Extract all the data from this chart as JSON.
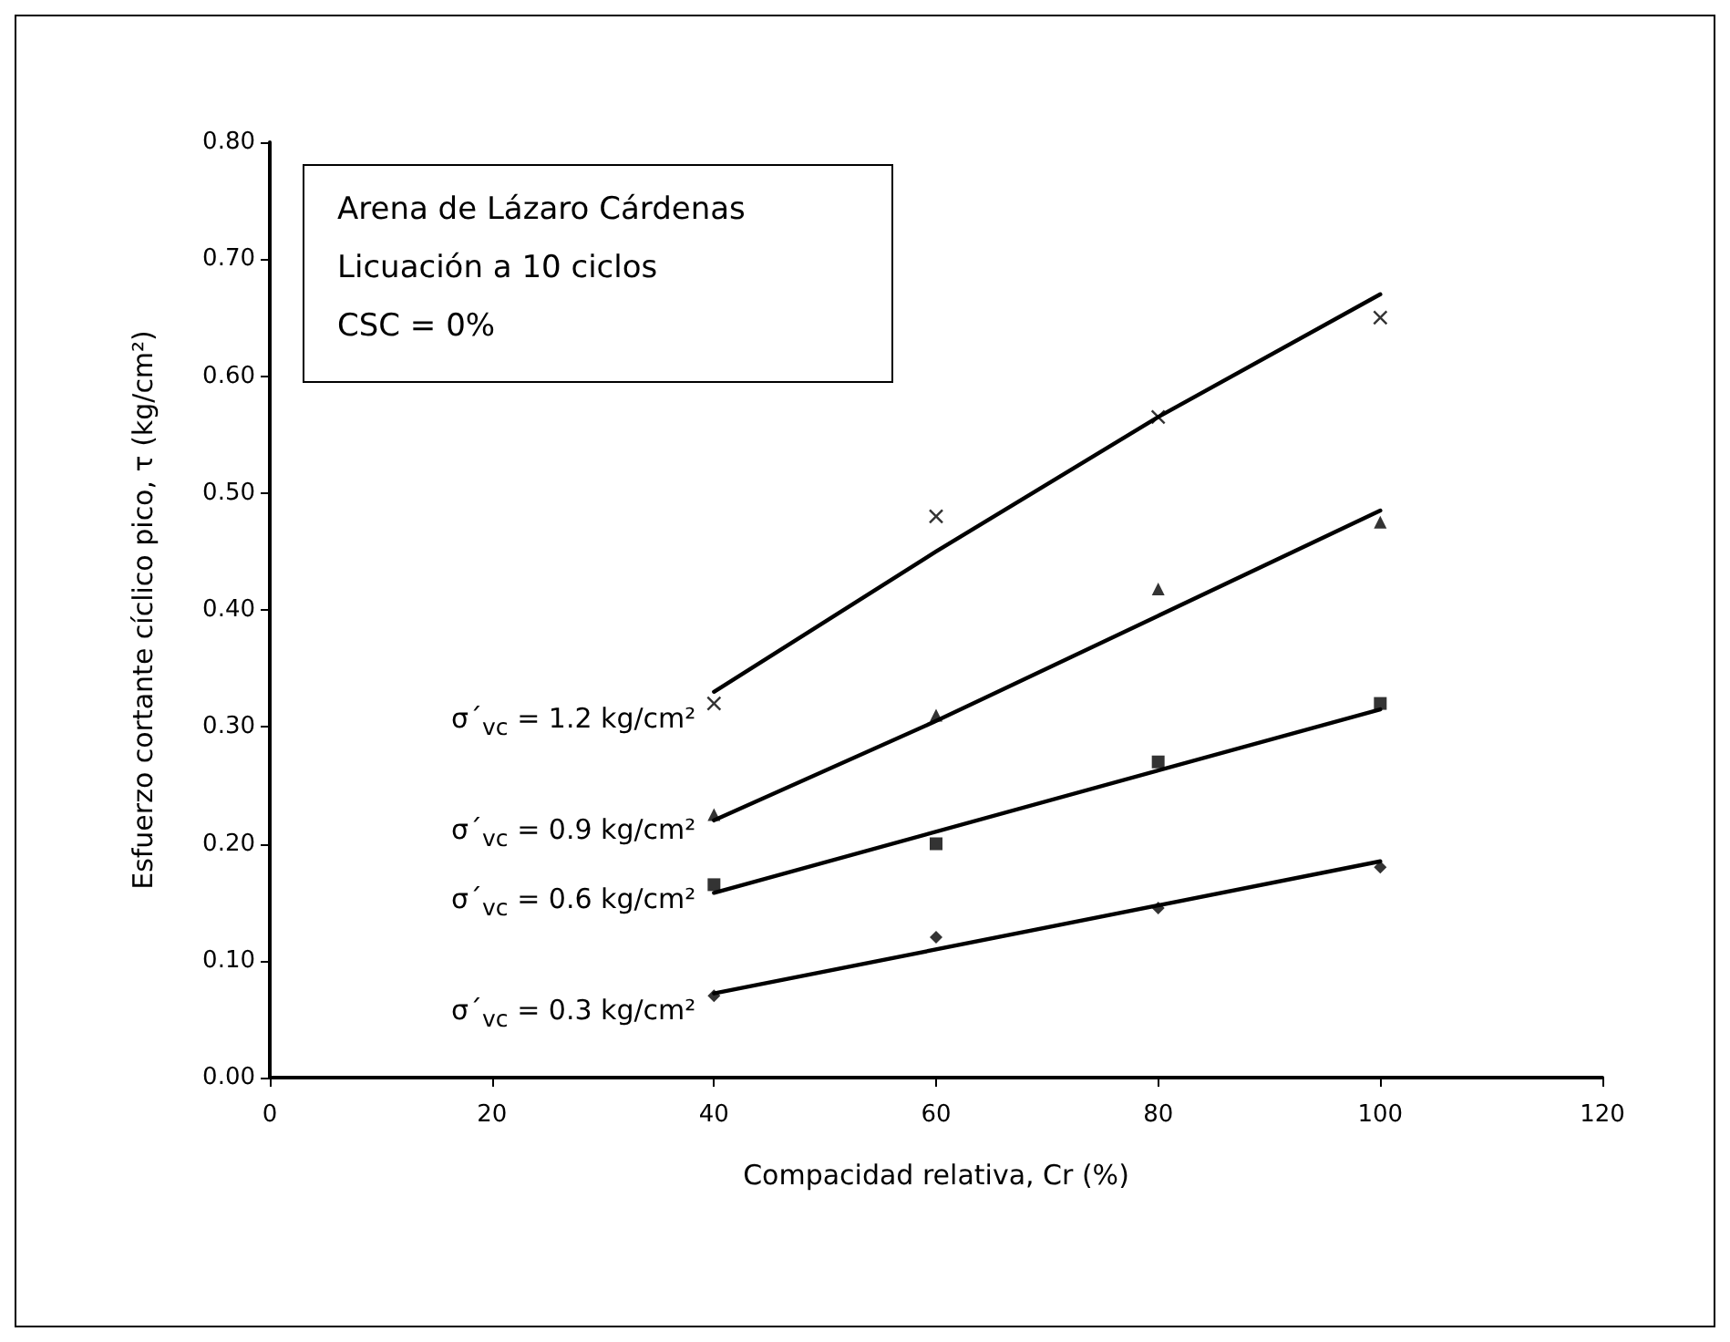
{
  "chart_data": {
    "type": "scatter",
    "xlabel": "Compacidad relativa, Cr (%)",
    "ylabel": "Esfuerzo cortante cíclico pico, τ (kg/cm²)",
    "annotations": [
      "Arena de Lázaro Cárdenas",
      "Licuación a 10 ciclos",
      "CSC = 0%"
    ],
    "xlim": [
      0,
      120
    ],
    "xticks": [
      0,
      20,
      40,
      60,
      80,
      100,
      120
    ],
    "ylim": [
      0,
      0.8
    ],
    "yticks": [
      {
        "value": 0,
        "label": "0.00"
      },
      {
        "value": 0.1,
        "label": "0.10"
      },
      {
        "value": 0.2,
        "label": "0.20"
      },
      {
        "value": 0.3,
        "label": "0.30"
      },
      {
        "value": 0.4,
        "label": "0.40"
      },
      {
        "value": 0.5,
        "label": "0.50"
      },
      {
        "value": 0.6,
        "label": "0.60"
      },
      {
        "value": 0.7,
        "label": "0.70"
      },
      {
        "value": 0.8,
        "label": "0.80"
      }
    ],
    "grid": false,
    "legend": false,
    "x": [
      40,
      60,
      80,
      100
    ],
    "series": [
      {
        "name": "σ´$_{vc}$ = 1.2 kg/cm²",
        "color": "#000000",
        "marker": "cross",
        "values": [
          0.32,
          0.48,
          0.565,
          0.65
        ]
      },
      {
        "name": "σ´$_{vc}$ = 0.9 kg/cm²",
        "color": "#000000",
        "marker": "triangle",
        "values": [
          0.225,
          0.31,
          0.418,
          0.475
        ]
      },
      {
        "name": "σ´$_{vc}$ = 0.6 kg/cm²",
        "color": "#000000",
        "marker": "square",
        "values": [
          0.165,
          0.2,
          0.27,
          0.32
        ]
      },
      {
        "name": "σ´$_{vc}$ = 0.3 kg/cm²",
        "color": "#000000",
        "marker": "diamond",
        "values": [
          0.07,
          0.12,
          0.145,
          0.18
        ]
      },
      {
        "type": "line",
        "color": "#000000",
        "marker": "none",
        "line_style": "solid",
        "x": [
          40,
          60,
          80,
          100
        ],
        "values": [
          0.33,
          0.45,
          0.565,
          0.67
        ]
      },
      {
        "type": "line",
        "color": "#000000",
        "marker": "none",
        "line_style": "solid",
        "x": [
          40,
          60,
          80,
          100
        ],
        "values": [
          0.22,
          0.305,
          0.395,
          0.485
        ]
      },
      {
        "type": "line",
        "color": "#000000",
        "marker": "none",
        "line_style": "solid",
        "x": [
          40,
          100
        ],
        "values": [
          0.158,
          0.315
        ]
      },
      {
        "type": "line",
        "color": "#000000",
        "marker": "none",
        "line_style": "solid",
        "x": [
          40,
          100
        ],
        "values": [
          0.072,
          0.185
        ]
      }
    ]
  }
}
